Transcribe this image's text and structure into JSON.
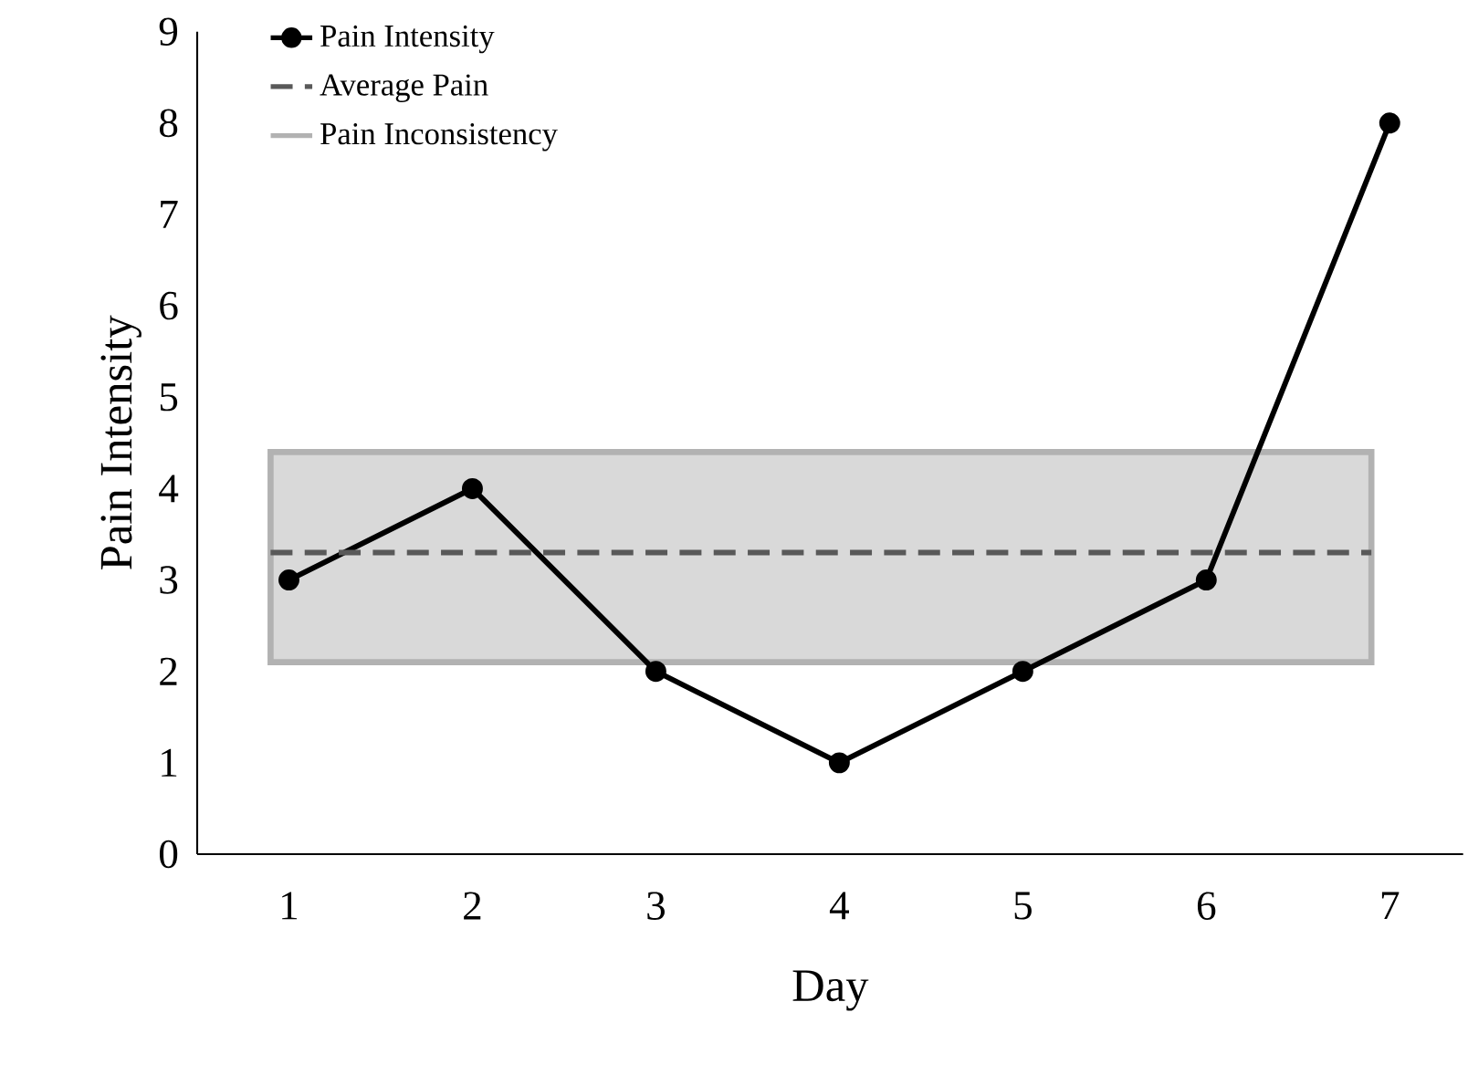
{
  "chart_data": {
    "type": "line",
    "xlabel": "Day",
    "ylabel": "Pain Intensity",
    "x": [
      1,
      2,
      3,
      4,
      5,
      6,
      7
    ],
    "series": [
      {
        "name": "Pain Intensity",
        "color": "#000000",
        "values": [
          3,
          4,
          2,
          1,
          2,
          3,
          8
        ]
      }
    ],
    "marker": "circle",
    "line_style": "solid",
    "ref_lines": [
      {
        "axis": "y",
        "value": 3.3,
        "label": "Average Pain",
        "color": "#595959",
        "line_style": "dashed"
      }
    ],
    "bands": [
      {
        "axis": "y",
        "from": 2.1,
        "to": 4.4,
        "label": "Pain Inconsistency",
        "color": "#d9d9d9"
      }
    ],
    "xlim": [
      0.5,
      7.4
    ],
    "ylim": [
      0,
      9
    ],
    "xticks": [
      1,
      2,
      3,
      4,
      5,
      6,
      7
    ],
    "yticks": [
      0,
      1,
      2,
      3,
      4,
      5,
      6,
      7,
      8,
      9
    ],
    "grid": false,
    "legend": "top left"
  }
}
